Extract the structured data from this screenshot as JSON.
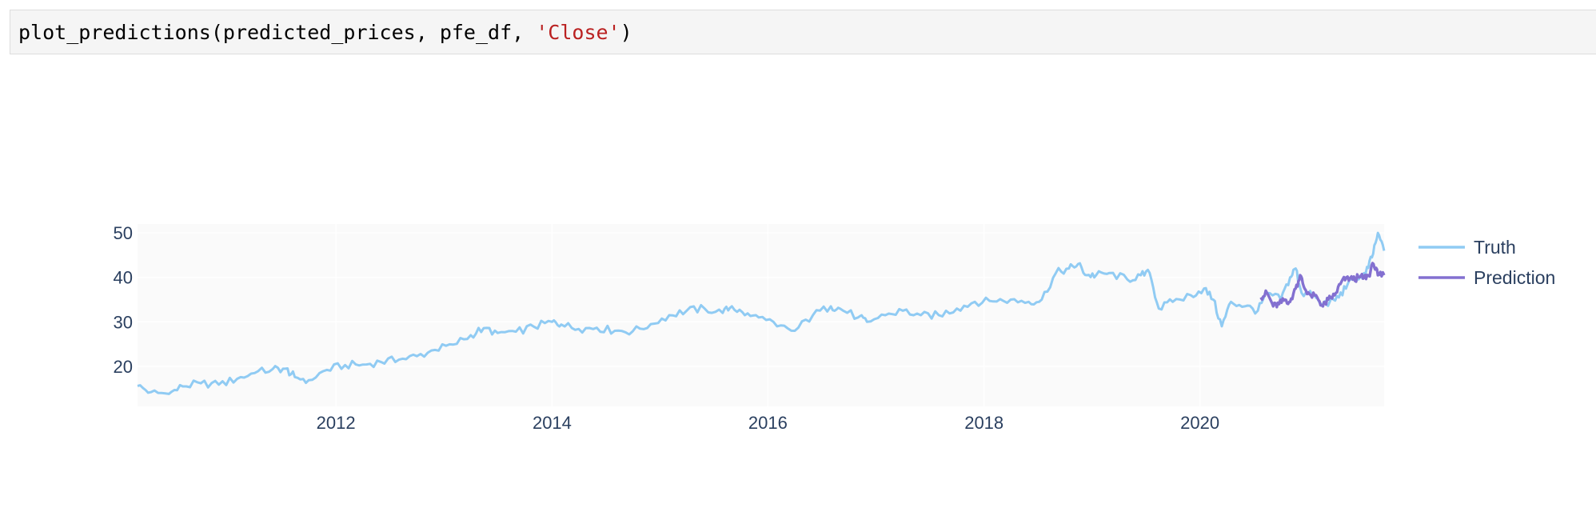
{
  "code_cell": {
    "fn": "plot_predictions",
    "open_paren": "(",
    "args": "predicted_prices, pfe_df, ",
    "string_arg": "'Close'",
    "close_paren": ")"
  },
  "colors": {
    "truth": "#90cbf3",
    "prediction": "#8370d0",
    "plot_bg": "#fafafa",
    "grid": "#ffffff",
    "tick_text": "#2a3f5f"
  },
  "chart_data": {
    "type": "line",
    "x_axis_type": "date",
    "xlim": [
      "2010-03-01",
      "2021-09-15"
    ],
    "ylim": [
      11,
      52
    ],
    "x_ticks": [
      "2012",
      "2014",
      "2016",
      "2018",
      "2020"
    ],
    "y_ticks": [
      "20",
      "30",
      "40",
      "50"
    ],
    "grid": true,
    "legend_position": "right",
    "series": [
      {
        "name": "Truth",
        "x": [
          "2010-03-01",
          "2010-04-15",
          "2010-06-15",
          "2010-08-01",
          "2010-10-01",
          "2010-12-01",
          "2011-02-01",
          "2011-04-01",
          "2011-06-01",
          "2011-07-15",
          "2011-08-15",
          "2011-10-01",
          "2011-12-01",
          "2012-02-01",
          "2012-04-01",
          "2012-06-01",
          "2012-08-01",
          "2012-10-01",
          "2012-12-01",
          "2013-02-01",
          "2013-04-01",
          "2013-05-15",
          "2013-07-01",
          "2013-09-01",
          "2013-11-01",
          "2014-01-01",
          "2014-02-01",
          "2014-04-01",
          "2014-06-01",
          "2014-08-01",
          "2014-10-01",
          "2014-12-01",
          "2015-02-01",
          "2015-04-01",
          "2015-06-01",
          "2015-08-01",
          "2015-09-01",
          "2015-10-15",
          "2015-12-01",
          "2016-02-01",
          "2016-04-01",
          "2016-06-01",
          "2016-08-01",
          "2016-09-01",
          "2016-11-01",
          "2016-12-01",
          "2017-02-01",
          "2017-04-01",
          "2017-06-01",
          "2017-08-01",
          "2017-10-01",
          "2017-12-01",
          "2018-02-01",
          "2018-04-01",
          "2018-06-01",
          "2018-07-15",
          "2018-09-01",
          "2018-10-15",
          "2018-11-15",
          "2018-12-15",
          "2019-01-15",
          "2019-03-01",
          "2019-05-01",
          "2019-06-15",
          "2019-07-15",
          "2019-08-15",
          "2019-10-01",
          "2019-12-01",
          "2020-01-15",
          "2020-02-15",
          "2020-03-15",
          "2020-04-15",
          "2020-06-01",
          "2020-07-15",
          "2020-08-15",
          "2020-10-01",
          "2020-11-01",
          "2020-11-20",
          "2020-12-10",
          "2021-01-15",
          "2021-02-15",
          "2021-03-15",
          "2021-04-15",
          "2021-05-15",
          "2021-06-15",
          "2021-07-15",
          "2021-08-05",
          "2021-08-25",
          "2021-09-15"
        ],
        "values": [
          15.6,
          14.2,
          13.8,
          15.5,
          16.2,
          15.9,
          17.2,
          18.5,
          19.4,
          19.5,
          17.6,
          16.9,
          19.2,
          20.3,
          20.4,
          21.0,
          21.5,
          22.3,
          23.7,
          24.9,
          27.0,
          28.6,
          27.5,
          27.8,
          28.9,
          30.0,
          29.4,
          28.4,
          28.7,
          28.0,
          27.9,
          29.5,
          31.5,
          32.5,
          33.0,
          32.0,
          33.5,
          31.5,
          31.0,
          29.0,
          28.0,
          31.5,
          33.5,
          33.0,
          31.0,
          30.0,
          31.5,
          32.5,
          31.5,
          31.5,
          33.0,
          34.5,
          34.6,
          35.0,
          34.5,
          35.0,
          41.0,
          42.0,
          43.0,
          40.5,
          40.5,
          41.0,
          39.5,
          40.5,
          41.0,
          33.0,
          34.5,
          36.0,
          37.5,
          35.0,
          29.0,
          34.5,
          33.5,
          32.5,
          36.5,
          35.0,
          40.0,
          42.0,
          36.5,
          36.0,
          34.0,
          34.5,
          35.5,
          38.5,
          39.5,
          41.0,
          44.5,
          50.0,
          46.0
        ]
      },
      {
        "name": "Prediction",
        "x": [
          "2020-07-25",
          "2020-08-15",
          "2020-09-05",
          "2020-09-25",
          "2020-10-15",
          "2020-11-01",
          "2020-11-20",
          "2020-12-05",
          "2020-12-20",
          "2021-01-10",
          "2021-02-01",
          "2021-02-20",
          "2021-03-10",
          "2021-04-01",
          "2021-04-20",
          "2021-05-10",
          "2021-06-01",
          "2021-06-20",
          "2021-07-10",
          "2021-07-25",
          "2021-08-10",
          "2021-08-25",
          "2021-09-15"
        ],
        "values": [
          35.5,
          36.5,
          33.5,
          34.0,
          35.0,
          34.5,
          37.5,
          40.5,
          37.5,
          36.0,
          35.5,
          33.5,
          35.0,
          36.0,
          38.5,
          40.0,
          39.5,
          40.0,
          40.0,
          40.5,
          43.0,
          40.5,
          40.5
        ]
      }
    ]
  }
}
